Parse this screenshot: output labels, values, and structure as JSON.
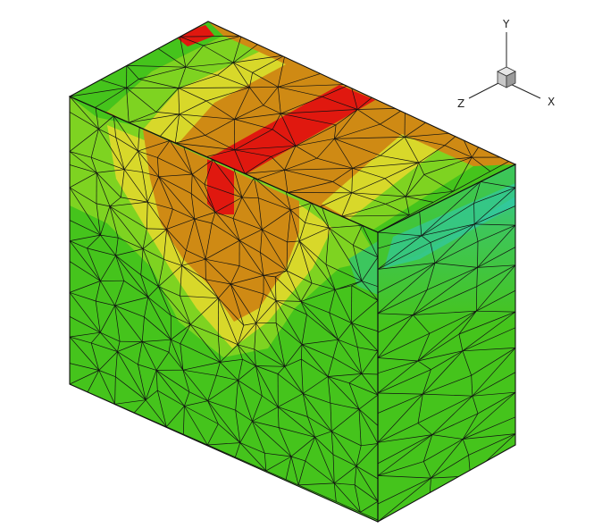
{
  "triad": {
    "x_label": "X",
    "y_label": "Y",
    "z_label": "Z"
  },
  "colors": {
    "background": "#ffffff",
    "green": "#45c41c",
    "green_light": "#7ed321",
    "yellow": "#d8d82a",
    "orange": "#cf8a14",
    "red": "#e0180f",
    "cyan": "#26c6a4",
    "mesh": "#111111"
  }
}
